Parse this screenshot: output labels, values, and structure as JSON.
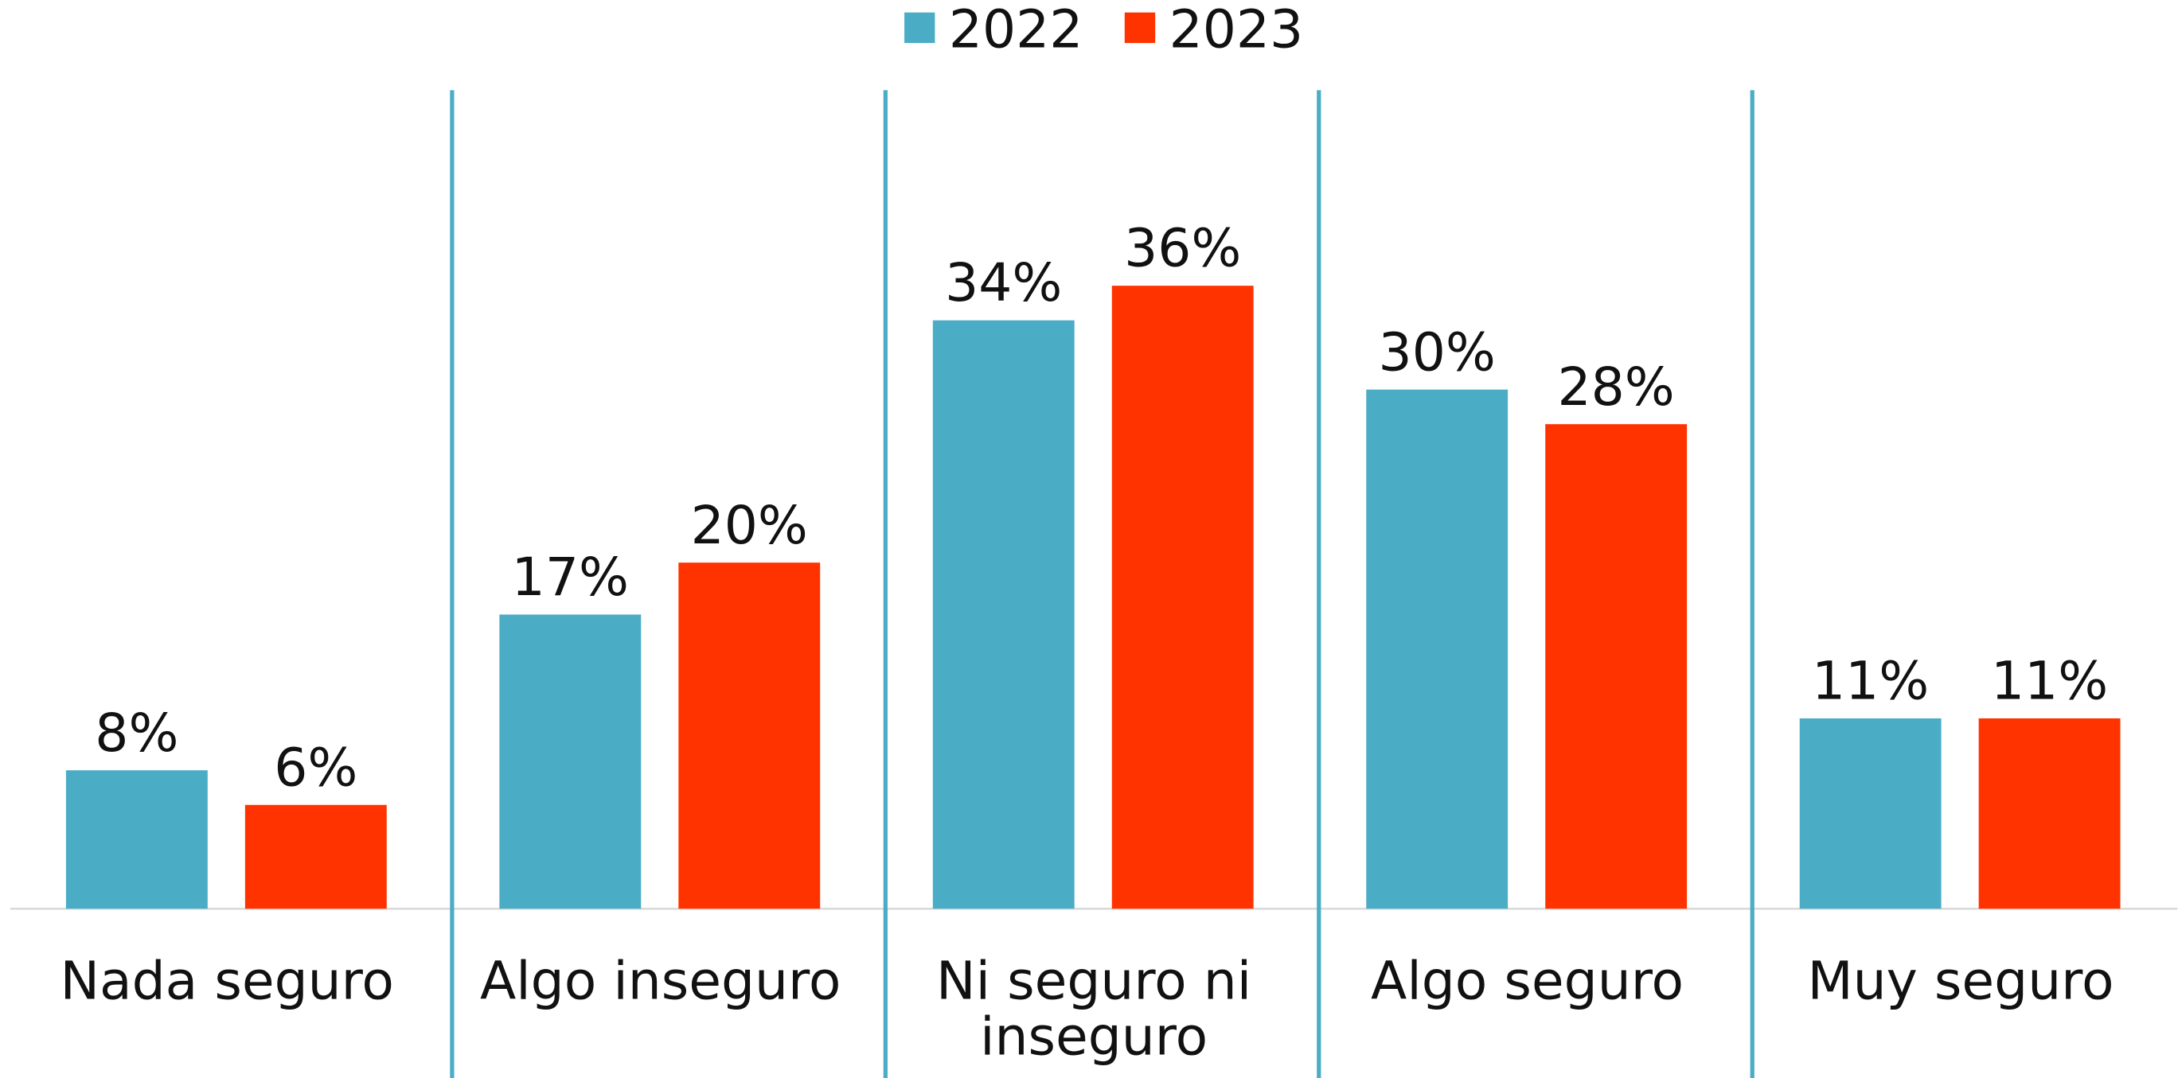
{
  "chart_data": {
    "type": "bar",
    "categories": [
      "Nada seguro",
      "Algo inseguro",
      "Ni seguro ni inseguro",
      "Algo seguro",
      "Muy seguro"
    ],
    "series": [
      {
        "name": "2022",
        "color": "#4bacc6",
        "values": [
          8,
          17,
          34,
          30,
          11
        ],
        "value_labels": [
          "8%",
          "17%",
          "34%",
          "30%",
          "11%"
        ]
      },
      {
        "name": "2023",
        "color": "#ff3300",
        "values": [
          6,
          20,
          36,
          28,
          11
        ],
        "value_labels": [
          "6%",
          "20%",
          "36%",
          "28%",
          "11%"
        ]
      }
    ],
    "ylim": [
      0,
      47.3
    ],
    "legend": "top"
  }
}
